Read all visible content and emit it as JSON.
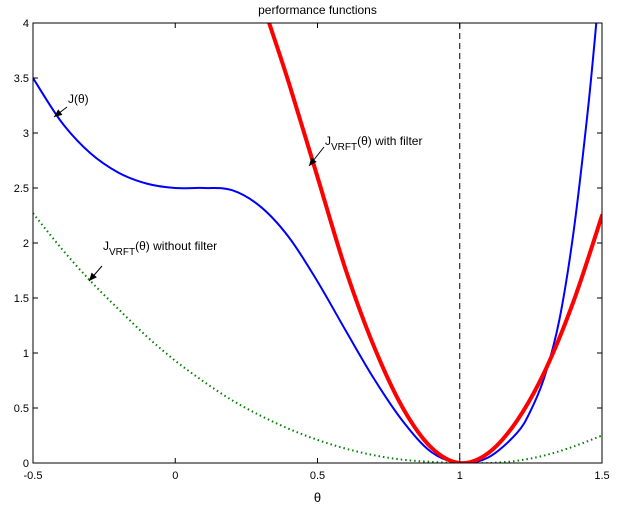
{
  "chart_data": {
    "type": "line",
    "title": "performance functions",
    "xlabel": "θ",
    "ylabel": "",
    "xlim": [
      -0.5,
      1.5
    ],
    "ylim": [
      0,
      4
    ],
    "xticks": [
      "-0.5",
      "0",
      "0.5",
      "1",
      "1.5"
    ],
    "yticks": [
      "0",
      "0.5",
      "1",
      "1.5",
      "2",
      "2.5",
      "3",
      "3.5",
      "4"
    ],
    "grid": false,
    "legend": "none",
    "reference_lines": [
      {
        "orientation": "vertical",
        "value": 1,
        "style": "dashed"
      },
      {
        "orientation": "horizontal",
        "value": 0,
        "style": "dashed"
      }
    ],
    "series": [
      {
        "style": "solid-blue",
        "color": "#0000ff",
        "x": [
          -0.5,
          -0.4,
          -0.3,
          -0.2,
          -0.1,
          0,
          0.1,
          0.2,
          0.3,
          0.4,
          0.5,
          0.6,
          0.7,
          0.8,
          0.9,
          1.0,
          1.1,
          1.2,
          1.25,
          1.3,
          1.35,
          1.4,
          1.45,
          1.48
        ],
        "y": [
          3.5,
          3.1,
          2.82,
          2.64,
          2.54,
          2.5,
          2.5,
          2.48,
          2.33,
          2.05,
          1.65,
          1.2,
          0.76,
          0.38,
          0.1,
          0.0,
          0.05,
          0.27,
          0.48,
          0.8,
          1.3,
          2.1,
          3.2,
          4.0
        ]
      },
      {
        "style": "thick-red",
        "color": "#ff0000",
        "x": [
          0.33,
          0.4,
          0.5,
          0.6,
          0.7,
          0.8,
          0.9,
          1.0,
          1.1,
          1.2,
          1.3,
          1.4,
          1.5
        ],
        "y": [
          4.0,
          3.45,
          2.6,
          1.75,
          1.05,
          0.5,
          0.14,
          0.0,
          0.09,
          0.38,
          0.84,
          1.47,
          2.25
        ]
      },
      {
        "style": "dotted-green",
        "color": "#008000",
        "x": [
          -0.5,
          -0.4,
          -0.3,
          -0.2,
          -0.1,
          0,
          0.1,
          0.2,
          0.3,
          0.4,
          0.5,
          0.6,
          0.7,
          0.8,
          0.9,
          1.0,
          1.1,
          1.2,
          1.3,
          1.4,
          1.5
        ],
        "y": [
          2.27,
          1.95,
          1.66,
          1.4,
          1.15,
          0.93,
          0.74,
          0.57,
          0.43,
          0.31,
          0.21,
          0.13,
          0.07,
          0.03,
          0.01,
          0.0,
          0.0,
          0.02,
          0.07,
          0.15,
          0.25
        ]
      }
    ],
    "annotations": [
      {
        "text": "J(θ)",
        "x": -0.41,
        "y": 3.2
      },
      {
        "text_base": "J",
        "text_sub": "VRFT",
        "text_tail": "(θ) with filter",
        "x": 0.52,
        "y": 2.85
      },
      {
        "text_base": "J",
        "text_sub": "VRFT",
        "text_tail": "(θ) without filter",
        "x": -0.26,
        "y": 1.8
      }
    ]
  }
}
